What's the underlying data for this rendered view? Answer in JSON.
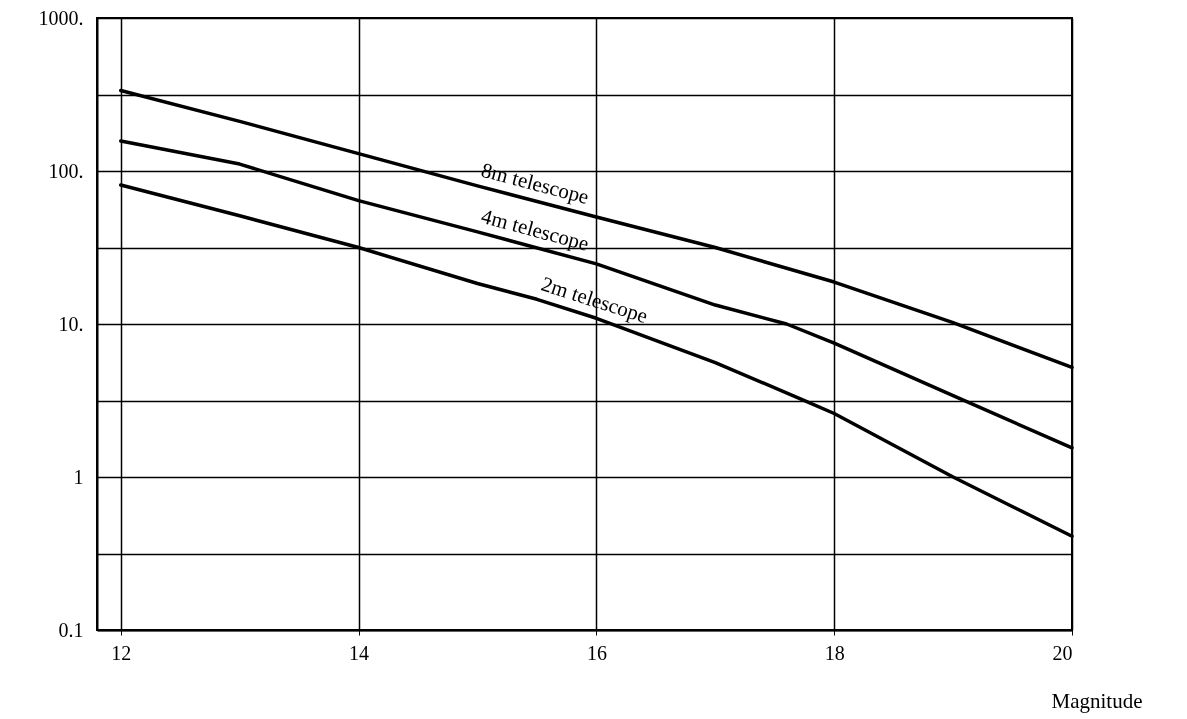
{
  "chart_data": {
    "type": "line",
    "xlabel": "Magnitude",
    "series": [
      {
        "name": "8m telescope",
        "color": "#000000",
        "x": [
          12,
          13,
          14,
          15,
          16,
          17,
          18,
          19,
          20
        ],
        "values": [
          336,
          211,
          130,
          80,
          50,
          31.6,
          18.8,
          10.2,
          5.2
        ]
      },
      {
        "name": "4m telescope",
        "color": "#000000",
        "x": [
          12,
          12.5,
          13,
          14,
          15,
          16,
          17,
          17.6,
          18,
          19,
          20
        ],
        "values": [
          157,
          132,
          111,
          64,
          40,
          24.7,
          13.3,
          10,
          7.5,
          3.4,
          1.55
        ]
      },
      {
        "name": "2m telescope",
        "color": "#000000",
        "x": [
          12,
          13,
          14,
          15,
          15.5,
          16,
          17,
          17.75,
          18,
          19,
          20
        ],
        "values": [
          81,
          51,
          31.6,
          18.4,
          14.5,
          10.9,
          5.6,
          3.16,
          2.6,
          1.0,
          0.41
        ]
      }
    ],
    "log": true,
    "xlim": [
      11.8,
      20
    ],
    "xticks": [
      12,
      14,
      16,
      18,
      20
    ],
    "ylim": [
      0.1,
      1000
    ],
    "yticks": [
      {
        "value": 0.1,
        "label": "0.1"
      },
      {
        "value": 0.316,
        "label": null
      },
      {
        "value": 1,
        "label": "1"
      },
      {
        "value": 3.16,
        "label": null
      },
      {
        "value": 10,
        "label": "10."
      },
      {
        "value": 31.6,
        "label": null
      },
      {
        "value": 100,
        "label": "100."
      },
      {
        "value": 316,
        "label": null
      },
      {
        "value": 1000,
        "label": "1000."
      }
    ],
    "grid": true,
    "marker": "none",
    "line_style": "solid"
  }
}
